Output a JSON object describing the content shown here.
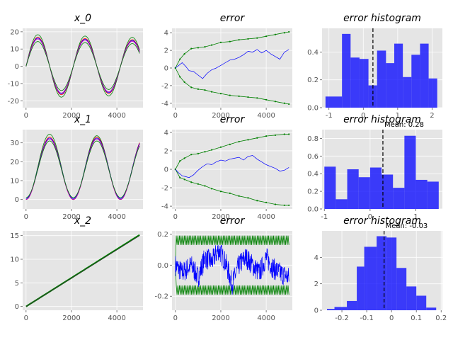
{
  "chart_data": [
    {
      "type": "line",
      "title": "x_0",
      "xlim": [
        -150,
        5150
      ],
      "ylim": [
        -24,
        22
      ],
      "xticks": [
        0,
        2000,
        4000
      ],
      "yticks": [
        -20,
        -10,
        0,
        10,
        20
      ],
      "series": [
        {
          "kind": "sine",
          "color": "#008000",
          "amp": 18.5,
          "period": 2080,
          "grow": 0.9,
          "width": 0.8
        },
        {
          "kind": "sine",
          "color": "#ff0000",
          "amp": 17.0,
          "period": 2080,
          "grow": 0.9,
          "width": 0.8
        },
        {
          "kind": "sine",
          "color": "#0000ff",
          "amp": 16.5,
          "period": 2080,
          "grow": 0.9,
          "width": 0.8
        },
        {
          "kind": "sine",
          "color": "#bf00bf",
          "amp": 16.0,
          "period": 2080,
          "grow": 0.9,
          "width": 0.8
        },
        {
          "kind": "sine",
          "color": "#008000",
          "amp": 14.5,
          "period": 2080,
          "grow": 0.9,
          "width": 0.8
        }
      ]
    },
    {
      "type": "line",
      "title": "error",
      "xlim": [
        -150,
        5150
      ],
      "ylim": [
        -4.5,
        4.5
      ],
      "xticks": [
        0,
        2000,
        4000
      ],
      "yticks": [
        -4,
        -2,
        0,
        2,
        4
      ],
      "series": [
        {
          "kind": "points",
          "color": "#008000",
          "marker": true,
          "width": 0.8,
          "x": [
            0,
            200,
            400,
            700,
            1000,
            1300,
            1600,
            2000,
            2400,
            2800,
            3200,
            3600,
            4000,
            4400,
            4800,
            5000
          ],
          "y": [
            0,
            1.0,
            1.6,
            2.2,
            2.3,
            2.4,
            2.6,
            2.9,
            3.0,
            3.2,
            3.3,
            3.4,
            3.6,
            3.8,
            4.0,
            4.1
          ]
        },
        {
          "kind": "points",
          "color": "#008000",
          "marker": true,
          "width": 0.8,
          "x": [
            0,
            200,
            400,
            700,
            1000,
            1300,
            1600,
            2000,
            2400,
            2800,
            3200,
            3600,
            4000,
            4400,
            4800,
            5000
          ],
          "y": [
            0,
            -1.0,
            -1.6,
            -2.2,
            -2.4,
            -2.5,
            -2.7,
            -2.9,
            -3.1,
            -3.2,
            -3.3,
            -3.4,
            -3.6,
            -3.8,
            -4.0,
            -4.1
          ]
        },
        {
          "kind": "points",
          "color": "#0000ff",
          "marker": false,
          "width": 0.7,
          "x": [
            0,
            150,
            300,
            450,
            600,
            800,
            1000,
            1200,
            1400,
            1600,
            1800,
            2000,
            2200,
            2400,
            2600,
            2800,
            3000,
            3200,
            3400,
            3600,
            3800,
            4000,
            4200,
            4400,
            4600,
            4800,
            5000
          ],
          "y": [
            0,
            0.3,
            0.6,
            0.2,
            -0.3,
            -0.4,
            -0.8,
            -1.2,
            -0.6,
            -0.2,
            0.0,
            0.3,
            0.6,
            0.9,
            1.0,
            1.2,
            1.5,
            1.9,
            1.8,
            2.1,
            1.7,
            2.0,
            1.6,
            1.3,
            1.0,
            1.8,
            2.1
          ]
        }
      ]
    },
    {
      "type": "bar",
      "title": "error histogram",
      "xlim": [
        -1.2,
        2.3
      ],
      "ylim": [
        0,
        0.57
      ],
      "xticks": [
        -1,
        0,
        1,
        2
      ],
      "yticks": [
        0.0,
        0.2,
        0.4
      ],
      "color": "#0000ff",
      "bins": [
        [
          -1.1,
          -0.62,
          0.08
        ],
        [
          -0.62,
          -0.37,
          0.53
        ],
        [
          -0.37,
          -0.11,
          0.36
        ],
        [
          -0.11,
          0.15,
          0.35
        ],
        [
          0.15,
          0.4,
          0.16
        ],
        [
          0.4,
          0.66,
          0.41
        ],
        [
          0.66,
          0.9,
          0.32
        ],
        [
          0.9,
          1.15,
          0.46
        ],
        [
          1.15,
          1.4,
          0.22
        ],
        [
          1.4,
          1.65,
          0.38
        ],
        [
          1.65,
          1.9,
          0.46
        ],
        [
          1.9,
          2.15,
          0.21
        ]
      ],
      "mean": 0.28,
      "mean_label": ""
    },
    {
      "type": "line",
      "title": "x_1",
      "xlim": [
        -150,
        5150
      ],
      "ylim": [
        -5,
        37
      ],
      "xticks": [
        0,
        2000,
        4000
      ],
      "yticks": [
        0,
        10,
        20,
        30
      ],
      "series": [
        {
          "kind": "cos",
          "color": "#008000",
          "amp": 17.5,
          "offset": 17.5,
          "period": 2080,
          "width": 0.8,
          "dip": 2.0
        },
        {
          "kind": "cos",
          "color": "#ff0000",
          "amp": 16.5,
          "offset": 16.5,
          "period": 2080,
          "width": 0.8,
          "dip": 0
        },
        {
          "kind": "cos",
          "color": "#0000ff",
          "amp": 16.0,
          "offset": 16.5,
          "period": 2080,
          "width": 0.8,
          "dip": 0
        },
        {
          "kind": "cos",
          "color": "#bf00bf",
          "amp": 16.0,
          "offset": 16.0,
          "period": 2080,
          "width": 0.8,
          "dip": 0
        },
        {
          "kind": "cos",
          "color": "#008000",
          "amp": 15.0,
          "offset": 16.0,
          "period": 2080,
          "width": 0.8,
          "dip": 0
        }
      ]
    },
    {
      "type": "line",
      "title": "error",
      "xlim": [
        -150,
        5150
      ],
      "ylim": [
        -4.3,
        4.3
      ],
      "xticks": [
        0,
        2000,
        4000
      ],
      "yticks": [
        -4,
        -2,
        0,
        2,
        4
      ],
      "series": [
        {
          "kind": "points",
          "color": "#008000",
          "marker": true,
          "width": 0.8,
          "x": [
            0,
            200,
            400,
            700,
            1000,
            1300,
            1600,
            2000,
            2400,
            2800,
            3200,
            3600,
            4000,
            4400,
            4800,
            5000
          ],
          "y": [
            0,
            0.9,
            1.2,
            1.6,
            1.7,
            1.9,
            2.1,
            2.4,
            2.7,
            3.0,
            3.2,
            3.4,
            3.6,
            3.7,
            3.8,
            3.8
          ]
        },
        {
          "kind": "points",
          "color": "#008000",
          "marker": true,
          "width": 0.8,
          "x": [
            0,
            200,
            400,
            700,
            1000,
            1300,
            1600,
            2000,
            2400,
            2800,
            3200,
            3600,
            4000,
            4400,
            4800,
            5000
          ],
          "y": [
            0,
            -0.9,
            -1.1,
            -1.4,
            -1.6,
            -1.8,
            -2.1,
            -2.4,
            -2.6,
            -2.9,
            -3.1,
            -3.4,
            -3.6,
            -3.8,
            -3.9,
            -3.9
          ]
        },
        {
          "kind": "points",
          "color": "#0000ff",
          "marker": false,
          "width": 0.7,
          "x": [
            0,
            150,
            300,
            450,
            600,
            800,
            1000,
            1200,
            1400,
            1600,
            1800,
            2000,
            2200,
            2400,
            2600,
            2800,
            3000,
            3200,
            3400,
            3600,
            3800,
            4000,
            4200,
            4400,
            4600,
            4800,
            5000
          ],
          "y": [
            0,
            -0.4,
            -0.7,
            -0.8,
            -0.9,
            -0.6,
            -0.1,
            0.3,
            0.6,
            0.5,
            0.8,
            1.0,
            0.9,
            1.1,
            1.2,
            1.3,
            1.0,
            1.4,
            1.5,
            1.1,
            0.8,
            0.5,
            0.3,
            0.1,
            -0.2,
            -0.1,
            0.2
          ]
        }
      ]
    },
    {
      "type": "bar",
      "title": "error histogram",
      "xlim": [
        -1.05,
        1.58
      ],
      "ylim": [
        0,
        0.9
      ],
      "xticks": [
        -1,
        0,
        1
      ],
      "yticks": [
        0.0,
        0.2,
        0.4,
        0.6,
        0.8
      ],
      "color": "#0000ff",
      "bins": [
        [
          -1.0,
          -0.75,
          0.48
        ],
        [
          -0.75,
          -0.5,
          0.11
        ],
        [
          -0.5,
          -0.25,
          0.45
        ],
        [
          -0.25,
          0.0,
          0.36
        ],
        [
          0.0,
          0.25,
          0.47
        ],
        [
          0.25,
          0.5,
          0.39
        ],
        [
          0.5,
          0.75,
          0.24
        ],
        [
          0.75,
          1.0,
          0.83
        ],
        [
          1.0,
          1.25,
          0.33
        ],
        [
          1.25,
          1.5,
          0.31
        ]
      ],
      "mean": 0.28,
      "mean_label": "Mean: 0.28"
    },
    {
      "type": "line",
      "title": "x_2",
      "xlim": [
        -150,
        5150
      ],
      "ylim": [
        -0.8,
        16
      ],
      "xticks": [
        0,
        2000,
        4000
      ],
      "yticks": [
        0,
        5,
        10,
        15
      ],
      "series": [
        {
          "kind": "linear",
          "color": "#008000",
          "slope": 0.00303,
          "width": 2.2
        },
        {
          "kind": "linear",
          "color": "#333333",
          "slope": 0.003,
          "width": 0.8
        }
      ]
    },
    {
      "type": "line",
      "title": "error",
      "xlim": [
        -150,
        5150
      ],
      "ylim": [
        -0.29,
        0.22
      ],
      "xticks": [
        0,
        2000,
        4000
      ],
      "yticks": [
        -0.2,
        0,
        0.2
      ],
      "series": [
        {
          "kind": "zigzag",
          "color": "#008000",
          "base": 0.16,
          "amp": 0.03,
          "n": 140,
          "width": 0.8
        },
        {
          "kind": "zigzag",
          "color": "#008000",
          "base": -0.16,
          "amp": 0.03,
          "n": 140,
          "width": 0.8
        },
        {
          "kind": "noise",
          "color": "#0000ff",
          "width": 0.7,
          "n": 500,
          "anchors": [
            [
              0,
              0.0
            ],
            [
              300,
              -0.05
            ],
            [
              700,
              0.0
            ],
            [
              1000,
              -0.08
            ],
            [
              1300,
              0.05
            ],
            [
              1600,
              0.02
            ],
            [
              1900,
              0.1
            ],
            [
              2200,
              0.02
            ],
            [
              2500,
              -0.12
            ],
            [
              2800,
              0.0
            ],
            [
              3100,
              0.05
            ],
            [
              3400,
              0.0
            ],
            [
              3700,
              -0.05
            ],
            [
              4000,
              0.05
            ],
            [
              4300,
              -0.02
            ],
            [
              4600,
              -0.05
            ],
            [
              5000,
              -0.08
            ]
          ]
        }
      ]
    },
    {
      "type": "bar",
      "title": "error histogram",
      "xlim": [
        -0.28,
        0.205
      ],
      "ylim": [
        0,
        6.0
      ],
      "xticks": [
        -0.2,
        -0.1,
        0.0,
        0.1,
        0.2
      ],
      "yticks": [
        0,
        2,
        4
      ],
      "color": "#0000ff",
      "bins": [
        [
          -0.26,
          -0.23,
          0.1
        ],
        [
          -0.23,
          -0.18,
          0.25
        ],
        [
          -0.18,
          -0.14,
          0.7
        ],
        [
          -0.14,
          -0.11,
          3.3
        ],
        [
          -0.11,
          -0.06,
          4.8
        ],
        [
          -0.06,
          -0.02,
          5.6
        ],
        [
          -0.02,
          0.02,
          5.5
        ],
        [
          0.02,
          0.06,
          3.2
        ],
        [
          0.06,
          0.1,
          1.8
        ],
        [
          0.1,
          0.14,
          1.1
        ],
        [
          0.14,
          0.18,
          0.2
        ]
      ],
      "mean": -0.03,
      "mean_label": "Mean: -0.03"
    }
  ]
}
